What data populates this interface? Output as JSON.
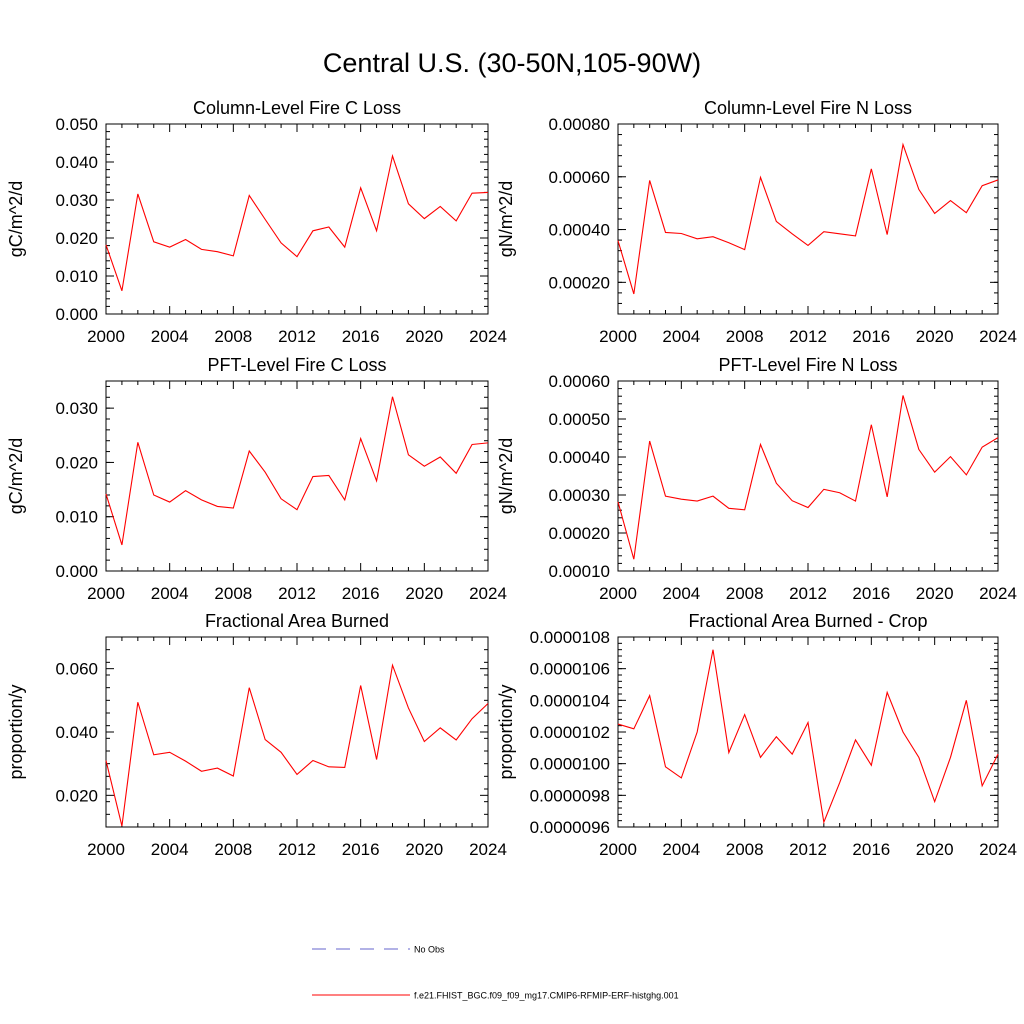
{
  "title": "Central U.S. (30-50N,105-90W)",
  "colors": {
    "model": "#ff0000",
    "obs": "#6666cc",
    "axis": "#000000"
  },
  "legend": {
    "items": [
      {
        "label": "No Obs",
        "style": "dashed",
        "color": "#6666cc"
      },
      {
        "label": "f.e21.FHIST_BGC.f09_f09_mg17.CMIP6-RFMIP-ERF-histghg.001",
        "style": "solid",
        "color": "#ff0000"
      }
    ]
  },
  "chart_data": [
    {
      "type": "line",
      "title": "Column-Level Fire C Loss",
      "xlabel": "",
      "ylabel": "gC/m^2/d",
      "xlim": [
        2000,
        2024
      ],
      "ylim": [
        0,
        0.05
      ],
      "xticks": [
        "2000",
        "2004",
        "2008",
        "2012",
        "2016",
        "2020",
        "2024"
      ],
      "yticks": [
        {
          "v": 0,
          "label": "0.000"
        },
        {
          "v": 0.01,
          "label": "0.010"
        },
        {
          "v": 0.02,
          "label": "0.020"
        },
        {
          "v": 0.03,
          "label": "0.030"
        },
        {
          "v": 0.04,
          "label": "0.040"
        },
        {
          "v": 0.05,
          "label": "0.050"
        }
      ],
      "x": [
        2000,
        2001,
        2002,
        2003,
        2004,
        2005,
        2006,
        2007,
        2008,
        2009,
        2010,
        2011,
        2012,
        2013,
        2014,
        2015,
        2016,
        2017,
        2018,
        2019,
        2020,
        2021,
        2022,
        2023,
        2024
      ],
      "series": [
        {
          "values": [
            0.0182,
            0.0061,
            0.0316,
            0.019,
            0.0176,
            0.0196,
            0.017,
            0.0164,
            0.0153,
            0.0312,
            0.0249,
            0.0187,
            0.0151,
            0.0219,
            0.0229,
            0.0176,
            0.0332,
            0.0219,
            0.0416,
            0.029,
            0.0251,
            0.0283,
            0.0245,
            0.0318,
            0.032
          ]
        }
      ]
    },
    {
      "type": "line",
      "title": "Column-Level Fire N Loss",
      "xlabel": "",
      "ylabel": "gN/m^2/d",
      "xlim": [
        2000,
        2024
      ],
      "ylim": [
        8e-05,
        0.0008
      ],
      "xticks": [
        "2000",
        "2004",
        "2008",
        "2012",
        "2016",
        "2020",
        "2024"
      ],
      "yticks": [
        {
          "v": 0.0002,
          "label": "0.00020"
        },
        {
          "v": 0.0004,
          "label": "0.00040"
        },
        {
          "v": 0.0006,
          "label": "0.00060"
        },
        {
          "v": 0.0008,
          "label": "0.00080"
        }
      ],
      "x": [
        2000,
        2001,
        2002,
        2003,
        2004,
        2005,
        2006,
        2007,
        2008,
        2009,
        2010,
        2011,
        2012,
        2013,
        2014,
        2015,
        2016,
        2017,
        2018,
        2019,
        2020,
        2021,
        2022,
        2023,
        2024
      ],
      "series": [
        {
          "values": [
            0.000358,
            0.000156,
            0.000586,
            0.000389,
            0.000385,
            0.000365,
            0.000373,
            0.00035,
            0.000324,
            0.000598,
            0.000431,
            0.000384,
            0.00034,
            0.000392,
            0.000384,
            0.000376,
            0.00063,
            0.000381,
            0.000722,
            0.000552,
            0.000461,
            0.00051,
            0.000464,
            0.000566,
            0.000588
          ]
        }
      ]
    },
    {
      "type": "line",
      "title": "PFT-Level Fire C Loss",
      "xlabel": "",
      "ylabel": "gC/m^2/d",
      "xlim": [
        2000,
        2024
      ],
      "ylim": [
        0,
        0.035
      ],
      "xticks": [
        "2000",
        "2004",
        "2008",
        "2012",
        "2016",
        "2020",
        "2024"
      ],
      "yticks": [
        {
          "v": 0,
          "label": "0.000"
        },
        {
          "v": 0.01,
          "label": "0.010"
        },
        {
          "v": 0.02,
          "label": "0.020"
        },
        {
          "v": 0.03,
          "label": "0.030"
        }
      ],
      "x": [
        2000,
        2001,
        2002,
        2003,
        2004,
        2005,
        2006,
        2007,
        2008,
        2009,
        2010,
        2011,
        2012,
        2013,
        2014,
        2015,
        2016,
        2017,
        2018,
        2019,
        2020,
        2021,
        2022,
        2023,
        2024
      ],
      "series": [
        {
          "values": [
            0.0142,
            0.0048,
            0.0237,
            0.014,
            0.0127,
            0.0148,
            0.0131,
            0.0119,
            0.0116,
            0.0221,
            0.0182,
            0.0133,
            0.0113,
            0.0174,
            0.0176,
            0.0131,
            0.0244,
            0.0166,
            0.0321,
            0.0214,
            0.0193,
            0.021,
            0.018,
            0.0233,
            0.0236
          ]
        }
      ]
    },
    {
      "type": "line",
      "title": "PFT-Level Fire N Loss",
      "xlabel": "",
      "ylabel": "gN/m^2/d",
      "xlim": [
        2000,
        2024
      ],
      "ylim": [
        0.0001,
        0.0006
      ],
      "xticks": [
        "2000",
        "2004",
        "2008",
        "2012",
        "2016",
        "2020",
        "2024"
      ],
      "yticks": [
        {
          "v": 0.0001,
          "label": "0.00010"
        },
        {
          "v": 0.0002,
          "label": "0.00020"
        },
        {
          "v": 0.0003,
          "label": "0.00030"
        },
        {
          "v": 0.0004,
          "label": "0.00040"
        },
        {
          "v": 0.0005,
          "label": "0.00050"
        },
        {
          "v": 0.0006,
          "label": "0.00060"
        }
      ],
      "x": [
        2000,
        2001,
        2002,
        2003,
        2004,
        2005,
        2006,
        2007,
        2008,
        2009,
        2010,
        2011,
        2012,
        2013,
        2014,
        2015,
        2016,
        2017,
        2018,
        2019,
        2020,
        2021,
        2022,
        2023,
        2024
      ],
      "series": [
        {
          "values": [
            0.000282,
            0.000131,
            0.000442,
            0.000297,
            0.000289,
            0.000284,
            0.000297,
            0.000265,
            0.000261,
            0.000433,
            0.000331,
            0.000285,
            0.000267,
            0.000315,
            0.000306,
            0.000284,
            0.000485,
            0.000295,
            0.000562,
            0.00042,
            0.00036,
            0.000401,
            0.000353,
            0.000426,
            0.000451
          ]
        }
      ]
    },
    {
      "type": "line",
      "title": "Fractional Area Burned",
      "xlabel": "",
      "ylabel": "proportion/y",
      "xlim": [
        2000,
        2024
      ],
      "ylim": [
        0.01,
        0.07
      ],
      "xticks": [
        "2000",
        "2004",
        "2008",
        "2012",
        "2016",
        "2020",
        "2024"
      ],
      "yticks": [
        {
          "v": 0.02,
          "label": "0.020"
        },
        {
          "v": 0.04,
          "label": "0.040"
        },
        {
          "v": 0.06,
          "label": "0.060"
        }
      ],
      "x": [
        2000,
        2001,
        2002,
        2003,
        2004,
        2005,
        2006,
        2007,
        2008,
        2009,
        2010,
        2011,
        2012,
        2013,
        2014,
        2015,
        2016,
        2017,
        2018,
        2019,
        2020,
        2021,
        2022,
        2023,
        2024
      ],
      "series": [
        {
          "values": [
            0.031,
            0.0103,
            0.0494,
            0.0328,
            0.0336,
            0.0308,
            0.0276,
            0.0286,
            0.0261,
            0.054,
            0.0376,
            0.0336,
            0.0266,
            0.031,
            0.029,
            0.0288,
            0.0547,
            0.0313,
            0.0611,
            0.0476,
            0.037,
            0.0413,
            0.0375,
            0.0442,
            0.049
          ]
        }
      ]
    },
    {
      "type": "line",
      "title": "Fractional Area Burned - Crop",
      "xlabel": "",
      "ylabel": "proportion/y",
      "xlim": [
        2000,
        2024
      ],
      "ylim": [
        9.6e-06,
        1.08e-05
      ],
      "xticks": [
        "2000",
        "2004",
        "2008",
        "2012",
        "2016",
        "2020",
        "2024"
      ],
      "yticks": [
        {
          "v": 9.6e-06,
          "label": "0.0000096"
        },
        {
          "v": 9.8e-06,
          "label": "0.0000098"
        },
        {
          "v": 1e-05,
          "label": "0.0000100"
        },
        {
          "v": 1.02e-05,
          "label": "0.0000102"
        },
        {
          "v": 1.04e-05,
          "label": "0.0000104"
        },
        {
          "v": 1.06e-05,
          "label": "0.0000106"
        },
        {
          "v": 1.08e-05,
          "label": "0.0000108"
        }
      ],
      "x": [
        2000,
        2001,
        2002,
        2003,
        2004,
        2005,
        2006,
        2007,
        2008,
        2009,
        2010,
        2011,
        2012,
        2013,
        2014,
        2015,
        2016,
        2017,
        2018,
        2019,
        2020,
        2021,
        2022,
        2023,
        2024
      ],
      "series": [
        {
          "values": [
            1.025e-05,
            1.022e-05,
            1.043e-05,
            9.98e-06,
            9.91e-06,
            1.02e-05,
            1.072e-05,
            1.007e-05,
            1.031e-05,
            1.004e-05,
            1.017e-05,
            1.006e-05,
            1.026e-05,
            9.63e-06,
            9.88e-06,
            1.015e-05,
            9.99e-06,
            1.045e-05,
            1.02e-05,
            1.004e-05,
            9.76e-06,
            1.004e-05,
            1.04e-05,
            9.86e-06,
            1.006e-05
          ]
        }
      ]
    }
  ]
}
